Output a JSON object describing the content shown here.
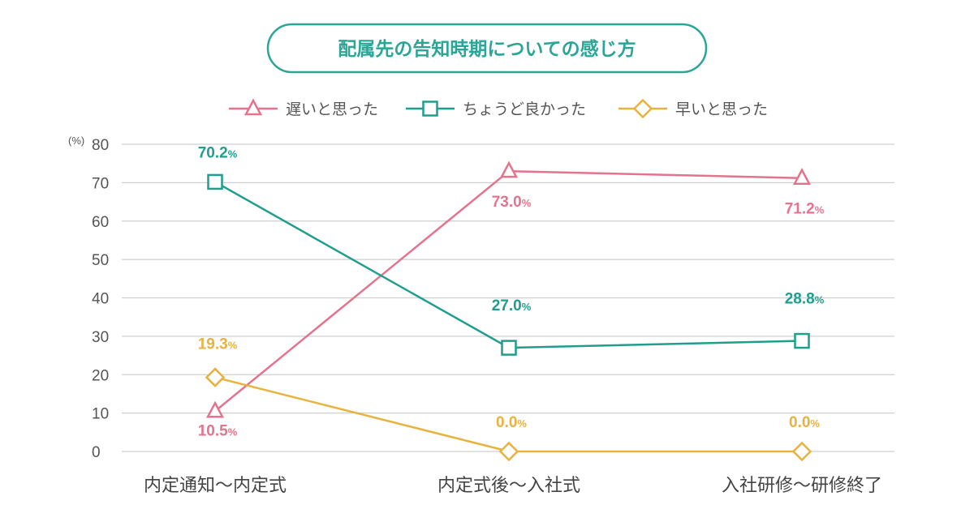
{
  "chart_data": {
    "type": "line",
    "title": "配属先の告知時期についての感じ方",
    "unit_label": "(%)",
    "categories": [
      "内定通知〜内定式",
      "内定式後〜入社式",
      "入社研修〜研修終了"
    ],
    "ylim": [
      0,
      80
    ],
    "yticks": [
      0,
      10,
      20,
      30,
      40,
      50,
      60,
      70,
      80
    ],
    "grid": true,
    "legend_position": "top-center",
    "series": [
      {
        "name": "遅いと思った",
        "values": [
          10.5,
          73.0,
          71.2
        ],
        "labels": [
          "10.5",
          "73.0",
          "71.2"
        ],
        "marker": "triangle",
        "color": "#e4738e"
      },
      {
        "name": "ちょうど良かった",
        "values": [
          70.2,
          27.0,
          28.8
        ],
        "labels": [
          "70.2",
          "27.0",
          "28.8"
        ],
        "marker": "square",
        "color": "#1f9e8e"
      },
      {
        "name": "早いと思った",
        "values": [
          19.3,
          0.0,
          0.0
        ],
        "labels": [
          "19.3",
          "0.0",
          "0.0"
        ],
        "marker": "diamond",
        "color": "#e9b23e"
      }
    ],
    "value_suffix": "%"
  }
}
